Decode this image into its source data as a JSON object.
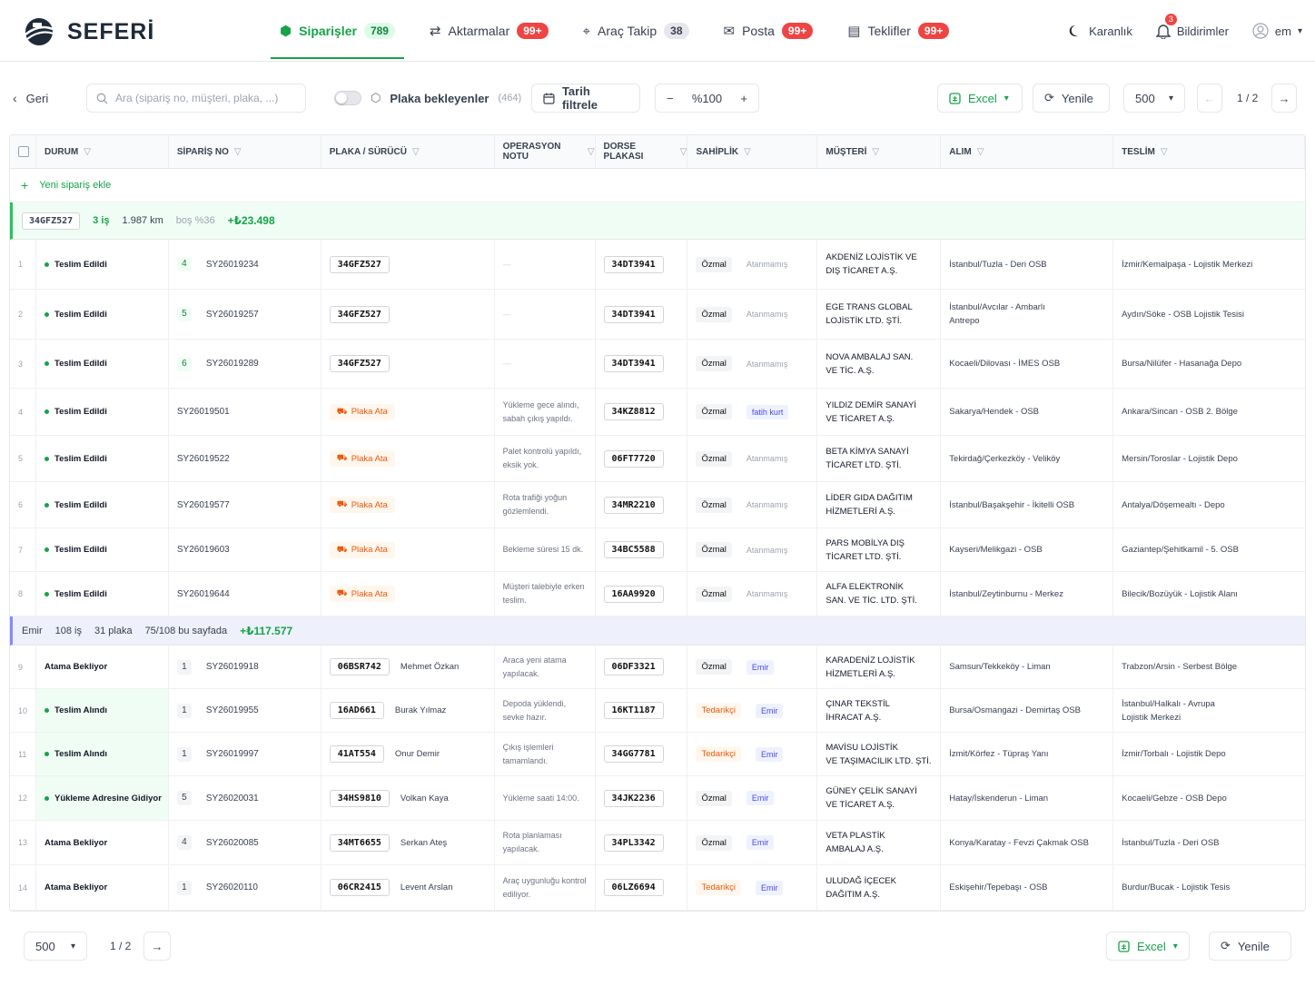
{
  "brand": "SEFERİ",
  "nav": [
    {
      "label": "Siparişler",
      "count": "789",
      "active": true,
      "icon": "box-icon",
      "badge": "green"
    },
    {
      "label": "Aktarmalar",
      "count": "99+",
      "icon": "transfer-icon",
      "badge": "red"
    },
    {
      "label": "Araç Takip",
      "count": "38",
      "icon": "location-pin-icon",
      "badge": "gray"
    },
    {
      "label": "Posta",
      "count": "99+",
      "icon": "mail-icon",
      "badge": "red"
    },
    {
      "label": "Teklifler",
      "count": "99+",
      "icon": "document-icon",
      "badge": "red"
    }
  ],
  "right": {
    "theme": "Karanlık",
    "notifications": "Bildirimler",
    "notif_count": "3",
    "user": "em"
  },
  "toolbar": {
    "back": "Geri",
    "search_placeholder": "Ara (sipariş no, müşteri, plaka, ...)",
    "plate_filter": "Plaka bekleyenler",
    "plate_count": "(464)",
    "date_filter": "Tarih filtrele",
    "zoom": "%100",
    "excel": "Excel",
    "refresh": "Yenile",
    "page_size": "500",
    "page": "1 / 2"
  },
  "columns": [
    "DURUM",
    "SİPARİŞ NO",
    "PLAKA / SÜRÜCÜ",
    "OPERASYON NOTU",
    "DORSE PLAKASI",
    "SAHİPLİK",
    "MÜŞTERİ",
    "ALIM",
    "TESLİM"
  ],
  "add_row": "Yeni sipariş ekle",
  "group1": {
    "plate": "34GFZ527",
    "jobs": "3 iş",
    "km": "1.987 km",
    "empty": "boş %36",
    "amount": "+₺23.498"
  },
  "group2": {
    "name": "Emir",
    "jobs": "108 iş",
    "plates": "31 plaka",
    "page_info": "75/108 bu sayfada",
    "amount": "+₺117.577"
  },
  "rows1": [
    {
      "n": "1",
      "status": "Teslim Edildi",
      "cnt": "4",
      "order": "SY26019234",
      "plate": "34GFZ527",
      "driver": "",
      "note": "—",
      "trailer": "34DT3941",
      "owner": "Özmal",
      "assign": "Atanmamış",
      "cust": [
        "AKDENİZ LOJİSTİK VE",
        "DIŞ TİCARET A.Ş."
      ],
      "pick": [
        "İstanbul/Tuzla - Deri OSB"
      ],
      "drop": [
        "İzmir/Kemalpaşa - Lojistik Merkezi"
      ]
    },
    {
      "n": "2",
      "status": "Teslim Edildi",
      "cnt": "5",
      "order": "SY26019257",
      "plate": "34GFZ527",
      "driver": "",
      "note": "—",
      "trailer": "34DT3941",
      "owner": "Özmal",
      "assign": "Atanmamış",
      "cust": [
        "EGE TRANS GLOBAL",
        "LOJİSTİK LTD. ŞTİ."
      ],
      "pick": [
        "İstanbul/Avcılar - Ambarlı",
        "Antrepo"
      ],
      "drop": [
        "Aydın/Söke - OSB Lojistik Tesisi"
      ]
    },
    {
      "n": "3",
      "status": "Teslim Edildi",
      "cnt": "6",
      "order": "SY26019289",
      "plate": "34GFZ527",
      "driver": "",
      "note": "—",
      "trailer": "34DT3941",
      "owner": "Özmal",
      "assign": "Atanmamış",
      "cust": [
        "NOVA AMBALAJ SAN.",
        "VE TİC. A.Ş."
      ],
      "pick": [
        "Kocaeli/Dilovası - İMES OSB"
      ],
      "drop": [
        "Bursa/Nilüfer - Hasanağa Depo"
      ]
    },
    {
      "n": "4",
      "status": "Teslim Edildi",
      "cnt": "",
      "order": "SY26019501",
      "plate": "",
      "ata": "Plaka Ata",
      "note": "Yükleme gece alındı, sabah çıkış yapıldı.",
      "trailer": "34KZ8812",
      "owner": "Özmal",
      "assign": "fatih kurt",
      "assignTag": true,
      "cust": [
        "YILDIZ DEMİR SANAYİ",
        "VE TİCARET A.Ş."
      ],
      "pick": [
        "Sakarya/Hendek - OSB"
      ],
      "drop": [
        "Ankara/Sincan - OSB 2. Bölge"
      ]
    },
    {
      "n": "5",
      "status": "Teslim Edildi",
      "cnt": "",
      "order": "SY26019522",
      "plate": "",
      "ata": "Plaka Ata",
      "note": "Palet kontrolü yapıldı, eksik yok.",
      "trailer": "06FT7720",
      "owner": "Özmal",
      "assign": "Atanmamış",
      "cust": [
        "BETA KİMYA SANAYİ",
        "TİCARET LTD. ŞTİ."
      ],
      "pick": [
        "Tekirdağ/Çerkezköy - Veliköy"
      ],
      "drop": [
        "Mersin/Toroslar - Lojistik Depo"
      ]
    },
    {
      "n": "6",
      "status": "Teslim Edildi",
      "cnt": "",
      "order": "SY26019577",
      "plate": "",
      "ata": "Plaka Ata",
      "note": "Rota trafiği yoğun gözlemlendi.",
      "trailer": "34MR2210",
      "owner": "Özmal",
      "assign": "Atanmamış",
      "cust": [
        "LİDER GIDA DAĞITIM",
        "HİZMETLERİ A.Ş."
      ],
      "pick": [
        "İstanbul/Başakşehir - İkitelli OSB"
      ],
      "drop": [
        "Antalya/Döşemealtı - Depo"
      ]
    },
    {
      "n": "7",
      "status": "Teslim Edildi",
      "cnt": "",
      "order": "SY26019603",
      "plate": "",
      "ata": "Plaka Ata",
      "note": "Bekleme süresi 15 dk.",
      "trailer": "34BC5588",
      "owner": "Özmal",
      "assign": "Atanmamış",
      "cust": [
        "PARS MOBİLYA DIŞ",
        "TİCARET LTD. ŞTİ."
      ],
      "pick": [
        "Kayseri/Melikgazi - OSB"
      ],
      "drop": [
        "Gaziantep/Şehitkamil - 5. OSB"
      ]
    },
    {
      "n": "8",
      "status": "Teslim Edildi",
      "cnt": "",
      "order": "SY26019644",
      "plate": "",
      "ata": "Plaka Ata",
      "note": "Müşteri talebiyle erken teslim.",
      "trailer": "16AA9920",
      "owner": "Özmal",
      "assign": "Atanmamış",
      "cust": [
        "ALFA ELEKTRONİK",
        "SAN. VE TİC. LTD. ŞTİ."
      ],
      "pick": [
        "İstanbul/Zeytinburnu - Merkez"
      ],
      "drop": [
        "Bilecik/Bozüyük - Lojistik Alanı"
      ]
    }
  ],
  "rows2": [
    {
      "n": "9",
      "status": "Atama Bekliyor",
      "dot": false,
      "cnt": "1",
      "order": "SY26019918",
      "plate": "06BSR742",
      "driver": "Mehmet Özkan",
      "note": "Araca yeni atama yapılacak.",
      "trailer": "06DF3321",
      "owner": "Özmal",
      "assign": "Emir",
      "cust": [
        "KARADENİZ LOJİSTİK",
        "HİZMETLERİ A.Ş."
      ],
      "pick": [
        "Samsun/Tekkeköy - Liman"
      ],
      "drop": [
        "Trabzon/Arsin - Serbest Bölge"
      ]
    },
    {
      "n": "10",
      "status": "Teslim Alındı",
      "dot": true,
      "cnt": "1",
      "order": "SY26019955",
      "plate": "16AD661",
      "driver": "Burak Yılmaz",
      "note": "Depoda yüklendi, sevke hazır.",
      "trailer": "16KT1187",
      "owner": "Tedarikçi",
      "assign": "Emir",
      "cust": [
        "ÇINAR TEKSTİL",
        "İHRACAT A.Ş."
      ],
      "pick": [
        "Bursa/Osmangazi - Demirtaş OSB"
      ],
      "drop": [
        "İstanbul/Halkalı - Avrupa",
        "Lojistik Merkezi"
      ]
    },
    {
      "n": "11",
      "status": "Teslim Alındı",
      "dot": true,
      "cnt": "1",
      "order": "SY26019997",
      "plate": "41AT554",
      "driver": "Onur Demir",
      "note": "Çıkış işlemleri tamamlandı.",
      "trailer": "34GG7781",
      "owner": "Tedarikçi",
      "assign": "Emir",
      "cust": [
        "MAVİSU LOJİSTİK",
        "VE TAŞIMACILIK LTD. ŞTİ."
      ],
      "pick": [
        "İzmit/Körfez - Tüpraş Yanı"
      ],
      "drop": [
        "İzmir/Torbalı - Lojistik Depo"
      ]
    },
    {
      "n": "12",
      "status": "Yükleme Adresine Gidiyor",
      "dot": true,
      "cnt": "5",
      "order": "SY26020031",
      "plate": "34HS9810",
      "driver": "Volkan Kaya",
      "note": "Yükleme saati 14:00.",
      "trailer": "34JK2236",
      "owner": "Özmal",
      "assign": "Emir",
      "cust": [
        "GÜNEY ÇELİK SANAYİ",
        "VE TİCARET A.Ş."
      ],
      "pick": [
        "Hatay/İskenderun - Liman"
      ],
      "drop": [
        "Kocaeli/Gebze - OSB Depo"
      ]
    },
    {
      "n": "13",
      "status": "Atama Bekliyor",
      "dot": false,
      "cnt": "4",
      "order": "SY26020085",
      "plate": "34MT6655",
      "driver": "Serkan Ateş",
      "note": "Rota planlaması yapılacak.",
      "trailer": "34PL3342",
      "owner": "Özmal",
      "assign": "Emir",
      "cust": [
        "VETA PLASTİK",
        "AMBALAJ A.Ş."
      ],
      "pick": [
        "Konya/Karatay - Fevzi Çakmak OSB"
      ],
      "drop": [
        "İstanbul/Tuzla - Deri OSB"
      ]
    },
    {
      "n": "14",
      "status": "Atama Bekliyor",
      "dot": false,
      "cnt": "1",
      "order": "SY26020110",
      "plate": "06CR2415",
      "driver": "Levent Arslan",
      "note": "Araç uygunluğu kontrol ediliyor.",
      "trailer": "06LZ6694",
      "owner": "Tedarikçi",
      "assign": "Emir",
      "cust": [
        "ULUDAĞ İÇECEK",
        "DAĞITIM A.Ş."
      ],
      "pick": [
        "Eskişehir/Tepebaşı - OSB"
      ],
      "drop": [
        "Burdur/Bucak - Lojistik Tesis"
      ]
    }
  ],
  "footer": {
    "page_size": "500",
    "page": "1 / 2",
    "excel": "Excel",
    "refresh": "Yenile"
  }
}
